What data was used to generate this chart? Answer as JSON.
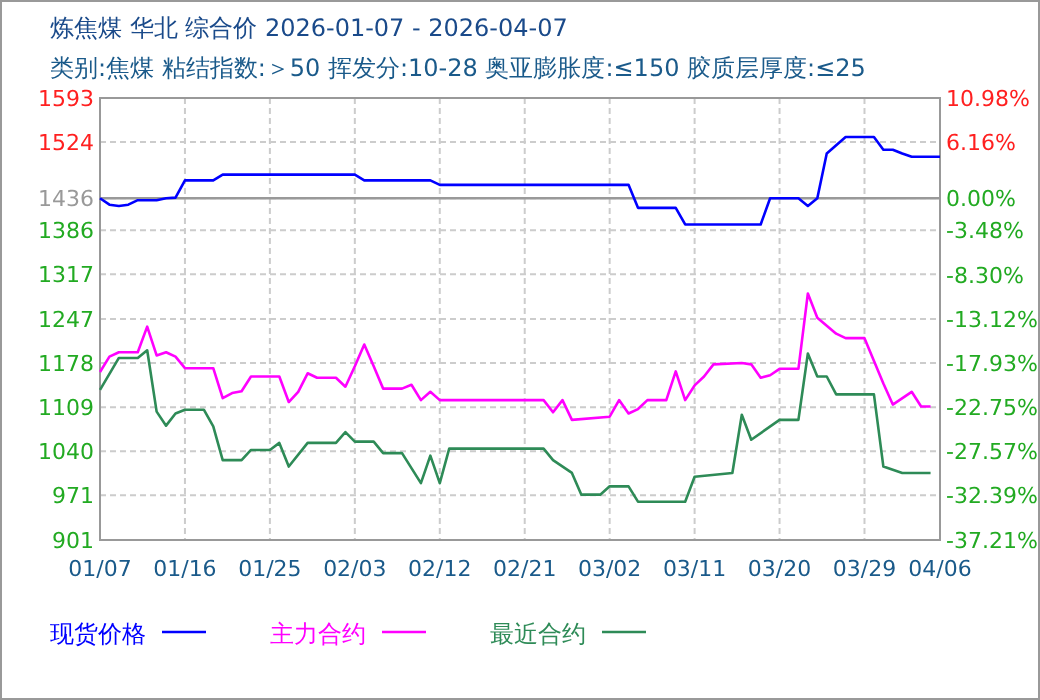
{
  "chart_data": {
    "type": "line",
    "title": "炼焦煤 华北 综合价 2026-01-07 - 2026-04-07",
    "subtitle": "类别:焦煤 粘结指数:＞50 挥发分:10-28 奥亚膨胀度:≤150 胶质层厚度:≤25",
    "xlim": [
      "2026-01-07",
      "2026-04-06"
    ],
    "xticks": [
      {
        "value": "2026-01-07",
        "label": "01/07"
      },
      {
        "value": "2026-01-16",
        "label": "01/16"
      },
      {
        "value": "2026-01-25",
        "label": "01/25"
      },
      {
        "value": "2026-02-03",
        "label": "02/03"
      },
      {
        "value": "2026-02-12",
        "label": "02/12"
      },
      {
        "value": "2026-02-21",
        "label": "02/21"
      },
      {
        "value": "2026-03-02",
        "label": "03/02"
      },
      {
        "value": "2026-03-11",
        "label": "03/11"
      },
      {
        "value": "2026-03-20",
        "label": "03/20"
      },
      {
        "value": "2026-03-29",
        "label": "03/29"
      },
      {
        "value": "2026-04-06",
        "label": "04/06"
      }
    ],
    "ylim": [
      901,
      1593
    ],
    "yticks": [
      901,
      971,
      1040,
      1109,
      1178,
      1247,
      1317,
      1386,
      1436,
      1524,
      1593
    ],
    "y2lim": [
      -37.21,
      10.98
    ],
    "y2ticks": [
      {
        "value": -37.21,
        "label": "-37.21%"
      },
      {
        "value": -32.39,
        "label": "-32.39%"
      },
      {
        "value": -27.57,
        "label": "-27.57%"
      },
      {
        "value": -22.75,
        "label": "-22.75%"
      },
      {
        "value": -17.93,
        "label": "-17.93%"
      },
      {
        "value": -13.12,
        "label": "-13.12%"
      },
      {
        "value": -8.3,
        "label": "-8.30%"
      },
      {
        "value": -3.48,
        "label": "-3.48%"
      },
      {
        "value": 0,
        "label": "0.00%"
      },
      {
        "value": 6.16,
        "label": "6.16%"
      },
      {
        "value": 10.98,
        "label": "10.98%"
      }
    ],
    "ref_lines": [
      {
        "axis": "y",
        "value": 1436,
        "color": "#999999"
      }
    ],
    "grid": true,
    "legend": "bottom",
    "line_style": "solid",
    "marker": "none",
    "series": [
      {
        "name": "现货价格",
        "color": "#0000ff",
        "x": [
          "2026-01-07",
          "2026-01-08",
          "2026-01-09",
          "2026-01-10",
          "2026-01-11",
          "2026-01-13",
          "2026-01-14",
          "2026-01-15",
          "2026-01-16",
          "2026-01-19",
          "2026-01-20",
          "2026-02-03",
          "2026-02-04",
          "2026-02-11",
          "2026-02-12",
          "2026-03-04",
          "2026-03-05",
          "2026-03-09",
          "2026-03-10",
          "2026-03-18",
          "2026-03-19",
          "2026-03-22",
          "2026-03-23",
          "2026-03-24",
          "2026-03-25",
          "2026-03-27",
          "2026-03-30",
          "2026-03-31",
          "2026-04-01",
          "2026-04-02",
          "2026-04-03",
          "2026-04-06"
        ],
        "values": [
          1436,
          1426,
          1424,
          1426,
          1433,
          1433,
          1436,
          1437,
          1464,
          1464,
          1473,
          1473,
          1464,
          1464,
          1457,
          1457,
          1421,
          1421,
          1395,
          1395,
          1436,
          1436,
          1424,
          1436,
          1506,
          1532,
          1532,
          1512,
          1512,
          1506,
          1501,
          1501
        ]
      },
      {
        "name": "主力合约",
        "color": "#ff00ff",
        "x": [
          "2026-01-07",
          "2026-01-08",
          "2026-01-09",
          "2026-01-11",
          "2026-01-12",
          "2026-01-13",
          "2026-01-14",
          "2026-01-15",
          "2026-01-16",
          "2026-01-19",
          "2026-01-20",
          "2026-01-21",
          "2026-01-22",
          "2026-01-23",
          "2026-01-26",
          "2026-01-27",
          "2026-01-28",
          "2026-01-29",
          "2026-01-30",
          "2026-02-01",
          "2026-02-02",
          "2026-02-03",
          "2026-02-04",
          "2026-02-05",
          "2026-02-06",
          "2026-02-08",
          "2026-02-09",
          "2026-02-10",
          "2026-02-11",
          "2026-02-12",
          "2026-02-23",
          "2026-02-24",
          "2026-02-25",
          "2026-02-26",
          "2026-03-02",
          "2026-03-03",
          "2026-03-04",
          "2026-03-05",
          "2026-03-06",
          "2026-03-08",
          "2026-03-09",
          "2026-03-10",
          "2026-03-11",
          "2026-03-12",
          "2026-03-13",
          "2026-03-16",
          "2026-03-17",
          "2026-03-18",
          "2026-03-19",
          "2026-03-20",
          "2026-03-22",
          "2026-03-23",
          "2026-03-24",
          "2026-03-26",
          "2026-03-27",
          "2026-03-29",
          "2026-03-31",
          "2026-04-01",
          "2026-04-03",
          "2026-04-04",
          "2026-04-05"
        ],
        "values": [
          1164,
          1188,
          1195,
          1195,
          1235,
          1190,
          1195,
          1188,
          1170,
          1170,
          1123,
          1131,
          1134,
          1157,
          1157,
          1117,
          1133,
          1162,
          1155,
          1155,
          1141,
          1173,
          1207,
          1173,
          1138,
          1138,
          1144,
          1120,
          1133,
          1120,
          1120,
          1101,
          1120,
          1089,
          1094,
          1120,
          1099,
          1106,
          1120,
          1120,
          1165,
          1120,
          1143,
          1157,
          1176,
          1178,
          1176,
          1155,
          1159,
          1169,
          1169,
          1287,
          1249,
          1224,
          1217,
          1217,
          1146,
          1113,
          1133,
          1110,
          1110
        ]
      },
      {
        "name": "最近合约",
        "color": "#2e8b57",
        "x": [
          "2026-01-07",
          "2026-01-09",
          "2026-01-11",
          "2026-01-12",
          "2026-01-13",
          "2026-01-14",
          "2026-01-15",
          "2026-01-16",
          "2026-01-18",
          "2026-01-19",
          "2026-01-20",
          "2026-01-22",
          "2026-01-23",
          "2026-01-25",
          "2026-01-26",
          "2026-01-27",
          "2026-01-29",
          "2026-02-01",
          "2026-02-02",
          "2026-02-03",
          "2026-02-05",
          "2026-02-06",
          "2026-02-08",
          "2026-02-10",
          "2026-02-11",
          "2026-02-12",
          "2026-02-13",
          "2026-02-23",
          "2026-02-24",
          "2026-02-26",
          "2026-02-27",
          "2026-03-01",
          "2026-03-02",
          "2026-03-04",
          "2026-03-05",
          "2026-03-10",
          "2026-03-11",
          "2026-03-15",
          "2026-03-16",
          "2026-03-17",
          "2026-03-20",
          "2026-03-22",
          "2026-03-23",
          "2026-03-24",
          "2026-03-25",
          "2026-03-26",
          "2026-03-30",
          "2026-03-31",
          "2026-04-02",
          "2026-04-05"
        ],
        "values": [
          1136,
          1186,
          1186,
          1198,
          1102,
          1080,
          1099,
          1105,
          1105,
          1079,
          1026,
          1026,
          1042,
          1042,
          1053,
          1016,
          1053,
          1053,
          1070,
          1055,
          1055,
          1037,
          1037,
          990,
          1033,
          990,
          1044,
          1044,
          1026,
          1006,
          972,
          972,
          985,
          985,
          961,
          961,
          1000,
          1006,
          1097,
          1058,
          1089,
          1089,
          1193,
          1157,
          1157,
          1129,
          1129,
          1016,
          1006,
          1006
        ]
      }
    ]
  }
}
